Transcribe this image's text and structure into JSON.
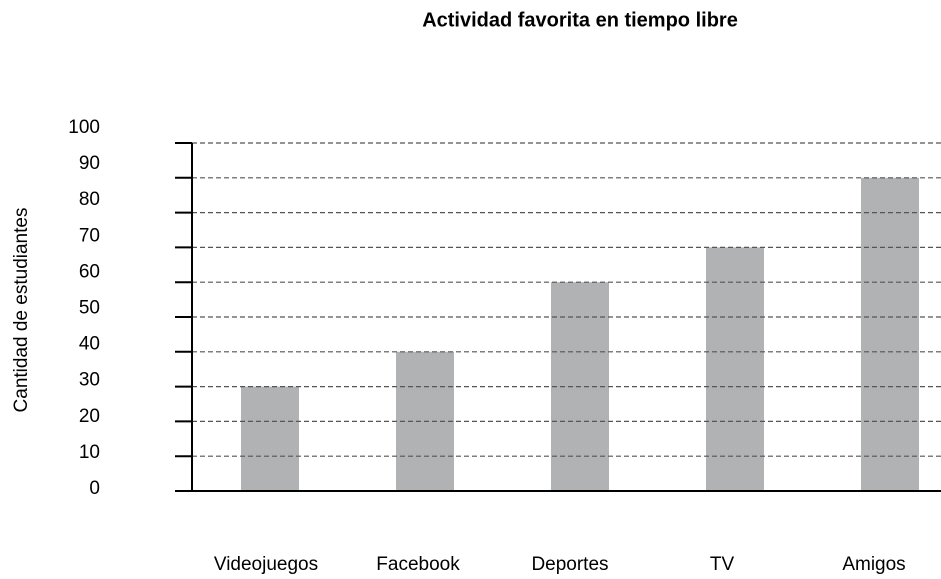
{
  "chart_data": {
    "type": "bar",
    "title": "Actividad favorita en tiempo libre",
    "y_label": "Cantidad de estudiantes",
    "categories": [
      "Videojuegos",
      "Facebook",
      "Deportes",
      "TV",
      "Amigos"
    ],
    "values": [
      30,
      40,
      60,
      70,
      90
    ],
    "color": "#b0b2b4",
    "ylim": [
      0,
      100
    ],
    "yticks": [
      0,
      10,
      20,
      30,
      40,
      50,
      60,
      70,
      80,
      90,
      100
    ],
    "grid": true
  }
}
